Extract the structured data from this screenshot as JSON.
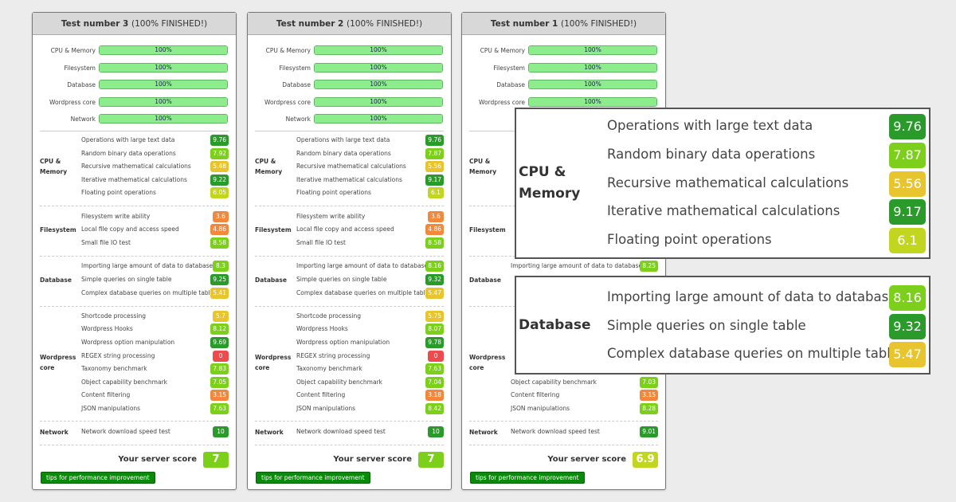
{
  "score_colors": {
    "excellent": "#2a9a2a",
    "good": "#7cd01c",
    "fair": "#c3d61f",
    "average": "#e8c42e",
    "poor": "#f2883b",
    "fail": "#ee4c4c"
  },
  "tips_label": "tips for performance improvement",
  "score_label": "Your server score",
  "panels": [
    {
      "title": "Test number 3",
      "status": "(100% FINISHED!)",
      "progress": [
        {
          "label": "CPU & Memory",
          "value": "100%"
        },
        {
          "label": "Filesystem",
          "value": "100%"
        },
        {
          "label": "Database",
          "value": "100%"
        },
        {
          "label": "Wordpress core",
          "value": "100%"
        },
        {
          "label": "Network",
          "value": "100%"
        }
      ],
      "groups": [
        {
          "label": "CPU & Memory",
          "tests": [
            {
              "label": "Operations with large text data",
              "score": "9.76"
            },
            {
              "label": "Random binary data operations",
              "score": "7.92"
            },
            {
              "label": "Recursive mathematical calculations",
              "score": "5.48"
            },
            {
              "label": "Iterative mathematical calculations",
              "score": "9.22"
            },
            {
              "label": "Floating point operations",
              "score": "6.05"
            }
          ]
        },
        {
          "label": "Filesystem",
          "tests": [
            {
              "label": "Filesystem write ability",
              "score": "3.6"
            },
            {
              "label": "Local file copy and access speed",
              "score": "4.86"
            },
            {
              "label": "Small file IO test",
              "score": "8.58"
            }
          ]
        },
        {
          "label": "Database",
          "tests": [
            {
              "label": "Importing large amount of data to database",
              "score": "8.3"
            },
            {
              "label": "Simple queries on single table",
              "score": "9.25"
            },
            {
              "label": "Complex database queries on multiple tables",
              "score": "5.41"
            }
          ]
        },
        {
          "label": "Wordpress core",
          "tests": [
            {
              "label": "Shortcode processing",
              "score": "5.7"
            },
            {
              "label": "Wordpress Hooks",
              "score": "8.12"
            },
            {
              "label": "Wordpress option manipulation",
              "score": "9.69"
            },
            {
              "label": "REGEX string processing",
              "score": "0"
            },
            {
              "label": "Taxonomy benchmark",
              "score": "7.83"
            },
            {
              "label": "Object capability benchmark",
              "score": "7.05"
            },
            {
              "label": "Content filtering",
              "score": "3.15"
            },
            {
              "label": "JSON manipulations",
              "score": "7.63"
            }
          ]
        },
        {
          "label": "Network",
          "tests": [
            {
              "label": "Network download speed test",
              "score": "10"
            }
          ]
        }
      ],
      "server_score": "7"
    },
    {
      "title": "Test number 2",
      "status": "(100% FINISHED!)",
      "progress": [
        {
          "label": "CPU & Memory",
          "value": "100%"
        },
        {
          "label": "Filesystem",
          "value": "100%"
        },
        {
          "label": "Database",
          "value": "100%"
        },
        {
          "label": "Wordpress core",
          "value": "100%"
        },
        {
          "label": "Network",
          "value": "100%"
        }
      ],
      "groups": [
        {
          "label": "CPU & Memory",
          "tests": [
            {
              "label": "Operations with large text data",
              "score": "9.76"
            },
            {
              "label": "Random binary data operations",
              "score": "7.87"
            },
            {
              "label": "Recursive mathematical calculations",
              "score": "5.56"
            },
            {
              "label": "Iterative mathematical calculations",
              "score": "9.17"
            },
            {
              "label": "Floating point operations",
              "score": "6.1"
            }
          ]
        },
        {
          "label": "Filesystem",
          "tests": [
            {
              "label": "Filesystem write ability",
              "score": "3.6"
            },
            {
              "label": "Local file copy and access speed",
              "score": "4.86"
            },
            {
              "label": "Small file IO test",
              "score": "8.58"
            }
          ]
        },
        {
          "label": "Database",
          "tests": [
            {
              "label": "Importing large amount of data to database",
              "score": "8.16"
            },
            {
              "label": "Simple queries on single table",
              "score": "9.32"
            },
            {
              "label": "Complex database queries on multiple tables",
              "score": "5.47"
            }
          ]
        },
        {
          "label": "Wordpress core",
          "tests": [
            {
              "label": "Shortcode processing",
              "score": "5.75"
            },
            {
              "label": "Wordpress Hooks",
              "score": "8.07"
            },
            {
              "label": "Wordpress option manipulation",
              "score": "9.78"
            },
            {
              "label": "REGEX string processing",
              "score": "0"
            },
            {
              "label": "Taxonomy benchmark",
              "score": "7.63"
            },
            {
              "label": "Object capability benchmark",
              "score": "7.04"
            },
            {
              "label": "Content filtering",
              "score": "3.18"
            },
            {
              "label": "JSON manipulations",
              "score": "8.42"
            }
          ]
        },
        {
          "label": "Network",
          "tests": [
            {
              "label": "Network download speed test",
              "score": "10"
            }
          ]
        }
      ],
      "server_score": "7"
    },
    {
      "title": "Test number 1",
      "status": "(100% FINISHED!)",
      "progress": [
        {
          "label": "CPU & Memory",
          "value": "100%"
        },
        {
          "label": "Filesystem",
          "value": "100%"
        },
        {
          "label": "Database",
          "value": "100%"
        },
        {
          "label": "Wordpress core",
          "value": "100%"
        },
        {
          "label": "Network",
          "value": null
        }
      ],
      "groups": [
        {
          "label": "CPU & Memory",
          "tests": [
            {
              "label": null,
              "score": null
            },
            {
              "label": null,
              "score": null
            },
            {
              "label": null,
              "score": null
            },
            {
              "label": null,
              "score": null
            },
            {
              "label": null,
              "score": null
            }
          ]
        },
        {
          "label": "Filesystem",
          "tests": [
            {
              "label": null,
              "score": null
            },
            {
              "label": null,
              "score": null
            },
            {
              "label": null,
              "score": null
            }
          ]
        },
        {
          "label": "Database",
          "tests": [
            {
              "label": "Importing large amount of data to database",
              "score": "8.25"
            },
            {
              "label": null,
              "score": null
            },
            {
              "label": null,
              "score": null
            }
          ]
        },
        {
          "label": "Wordpress core",
          "tests": [
            {
              "label": null,
              "score": null
            },
            {
              "label": null,
              "score": null
            },
            {
              "label": null,
              "score": null
            },
            {
              "label": null,
              "score": null
            },
            {
              "label": null,
              "score": null
            },
            {
              "label": "Object capability benchmark",
              "score": "7.03"
            },
            {
              "label": "Content filtering",
              "score": "3.15"
            },
            {
              "label": "JSON manipulations",
              "score": "8.28"
            }
          ]
        },
        {
          "label": "Network",
          "tests": [
            {
              "label": "Network download speed test",
              "score": "9.01"
            }
          ]
        }
      ],
      "server_score": "6.9"
    }
  ],
  "magnified": [
    {
      "label": "CPU & Memory",
      "tests": [
        {
          "label": "Operations with large text data",
          "score": "9.76"
        },
        {
          "label": "Random binary data operations",
          "score": "7.87"
        },
        {
          "label": "Recursive mathematical calculations",
          "score": "5.56"
        },
        {
          "label": "Iterative mathematical calculations",
          "score": "9.17"
        },
        {
          "label": "Floating point operations",
          "score": "6.1"
        }
      ]
    },
    {
      "label": "Database",
      "tests": [
        {
          "label": "Importing large amount of data to database",
          "score": "8.16"
        },
        {
          "label": "Simple queries on single table",
          "score": "9.32"
        },
        {
          "label": "Complex database queries on multiple tables",
          "score": "5.47"
        }
      ]
    }
  ]
}
